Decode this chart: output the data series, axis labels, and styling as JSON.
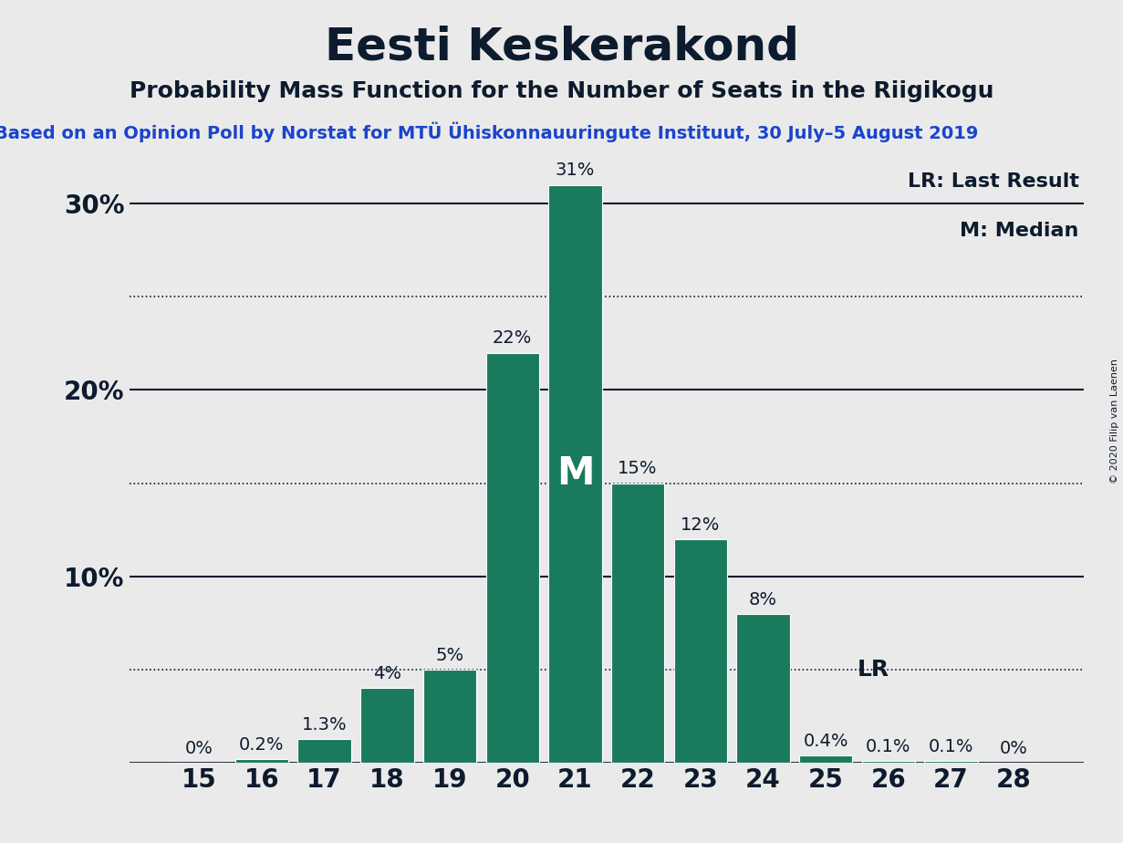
{
  "title": "Eesti Keskerakond",
  "subtitle": "Probability Mass Function for the Number of Seats in the Riigikogu",
  "source_line": "Based on an Opinion Poll by Norstat for MTÜ Ühiskonnauuringute Instituut, 30 July–5 August 2019",
  "copyright": "© 2020 Filip van Laenen",
  "seats": [
    15,
    16,
    17,
    18,
    19,
    20,
    21,
    22,
    23,
    24,
    25,
    26,
    27,
    28
  ],
  "probabilities": [
    0.0,
    0.2,
    1.3,
    4.0,
    5.0,
    22.0,
    31.0,
    15.0,
    12.0,
    8.0,
    0.4,
    0.1,
    0.1,
    0.0
  ],
  "labels": [
    "0%",
    "0.2%",
    "1.3%",
    "4%",
    "5%",
    "22%",
    "31%",
    "15%",
    "12%",
    "8%",
    "0.4%",
    "0.1%",
    "0.1%",
    "0%"
  ],
  "bar_color": "#1a7a5e",
  "background_color": "#eaeaea",
  "text_color": "#0d1b2e",
  "median_seat": 21,
  "lr_seat": 25,
  "lr_label": "LR",
  "median_label": "M",
  "ylim": [
    0,
    33
  ],
  "solid_yticks": [
    0,
    10,
    20,
    30
  ],
  "dotted_yticks": [
    5,
    15,
    25
  ],
  "ytick_solid_labels": [
    "",
    "10%",
    "20%",
    "30%"
  ],
  "title_fontsize": 36,
  "subtitle_fontsize": 18,
  "source_fontsize": 14,
  "legend_fontsize": 16,
  "bar_label_fontsize": 14,
  "axis_label_fontsize": 20,
  "median_fontsize": 30
}
